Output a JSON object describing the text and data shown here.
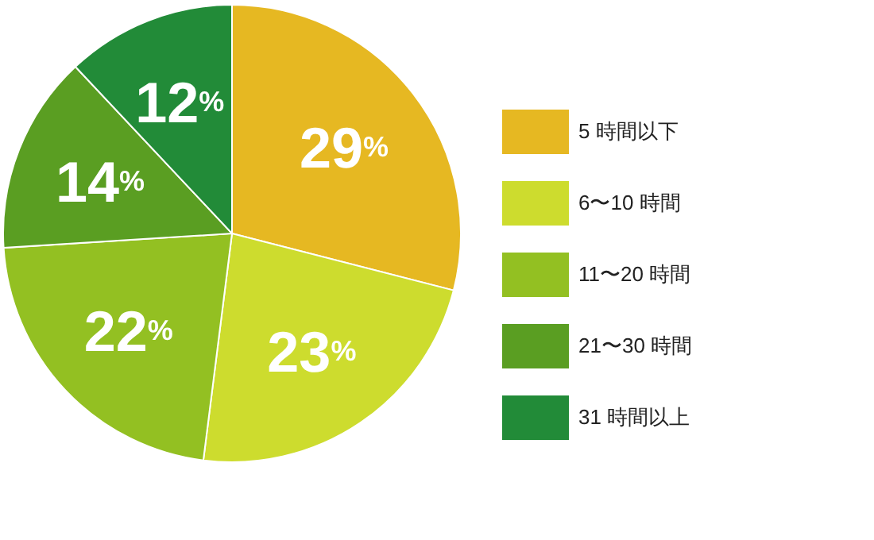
{
  "chart_data": {
    "type": "pie",
    "categories": [
      "5 時間以下",
      "6〜10 時間",
      "11〜20 時間",
      "21〜30 時間",
      "31 時間以上"
    ],
    "values": [
      29,
      23,
      22,
      14,
      12
    ],
    "colors": [
      "#e6b822",
      "#cddc2e",
      "#93c022",
      "#5a9e22",
      "#228b38"
    ],
    "value_labels": [
      "29%",
      "23%",
      "22%",
      "14%",
      "12%"
    ],
    "legend": "right"
  }
}
